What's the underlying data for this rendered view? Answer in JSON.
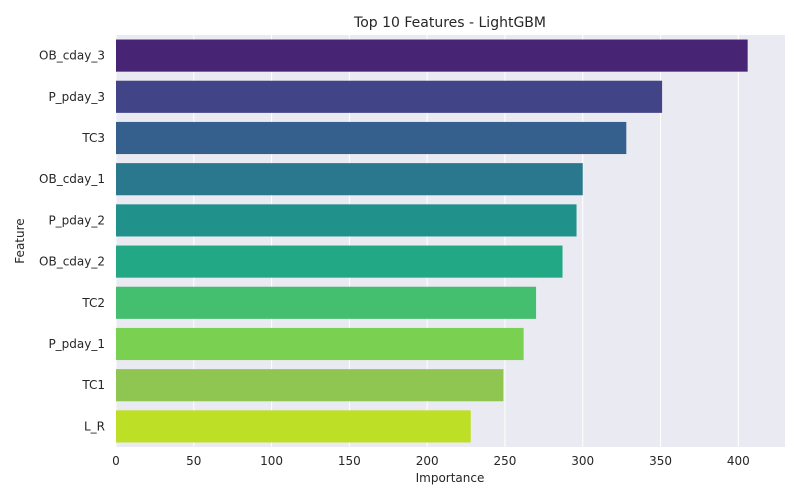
{
  "chart_data": {
    "type": "bar",
    "orientation": "horizontal",
    "title": "Top 10 Features - LightGBM",
    "xlabel": "Importance",
    "ylabel": "Feature",
    "categories": [
      "OB_cday_3",
      "P_pday_3",
      "TC3",
      "OB_cday_1",
      "P_pday_2",
      "OB_cday_2",
      "TC2",
      "P_pday_1",
      "TC1",
      "L_R"
    ],
    "values": [
      406,
      351,
      328,
      300,
      296,
      287,
      270,
      262,
      249,
      228
    ],
    "xlim": [
      0,
      430
    ],
    "xticks": [
      0,
      50,
      100,
      150,
      200,
      250,
      300,
      350,
      400
    ],
    "grid": true,
    "colors": {
      "plot_background": "#eaeaf2",
      "grid": "#ffffff",
      "text": "#262626",
      "bars": [
        "#482475",
        "#414487",
        "#355f8d",
        "#2a788e",
        "#21918c",
        "#22a884",
        "#44bf70",
        "#7ad151",
        "#8fc651",
        "#bddf26"
      ]
    }
  }
}
